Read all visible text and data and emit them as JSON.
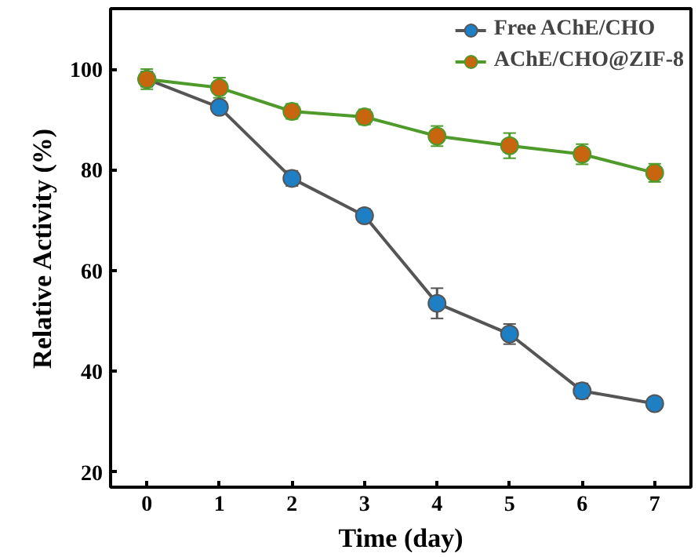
{
  "chart_data": {
    "type": "line",
    "xlabel": "Time (day)",
    "ylabel": "Relative Activity (%)",
    "x": [
      0,
      1,
      2,
      3,
      4,
      5,
      6,
      7
    ],
    "series": [
      {
        "name": "Free AChE/CHO",
        "color": "#555555",
        "colors": [
          "#1f7fc4",
          "#1f7fc4",
          "#1f7fc4",
          "#1f7fc4",
          "#1f7fc4",
          "#1f7fc4",
          "#1f7fc4",
          "#1f7fc4"
        ],
        "values": [
          98,
          92.4,
          78.3,
          70.9,
          53.5,
          47.4,
          36.1,
          33.6
        ],
        "errors": [
          1.5,
          1.2,
          1.5,
          1.3,
          3,
          2,
          1.5,
          1.2
        ]
      },
      {
        "name": "AChE/CHO@ZIF-8",
        "color": "#4e9a2a",
        "colors": [
          "#c8650f",
          "#c8650f",
          "#c8650f",
          "#c8650f",
          "#c8650f",
          "#c8650f",
          "#c8650f",
          "#c8650f"
        ],
        "values": [
          98,
          96.3,
          91.6,
          90.5,
          86.7,
          84.8,
          83.1,
          79.4
        ],
        "errors": [
          2,
          2,
          1.5,
          1.5,
          2,
          2.5,
          2,
          1.8
        ]
      }
    ],
    "xlim": [
      -0.5,
      7.5
    ],
    "ylim": [
      17,
      112
    ],
    "xticks": [
      0,
      1,
      2,
      3,
      4,
      5,
      6,
      7
    ],
    "yticks": [
      20,
      40,
      60,
      80,
      100
    ],
    "marker": "circle",
    "grid": false,
    "legend": "top right"
  }
}
